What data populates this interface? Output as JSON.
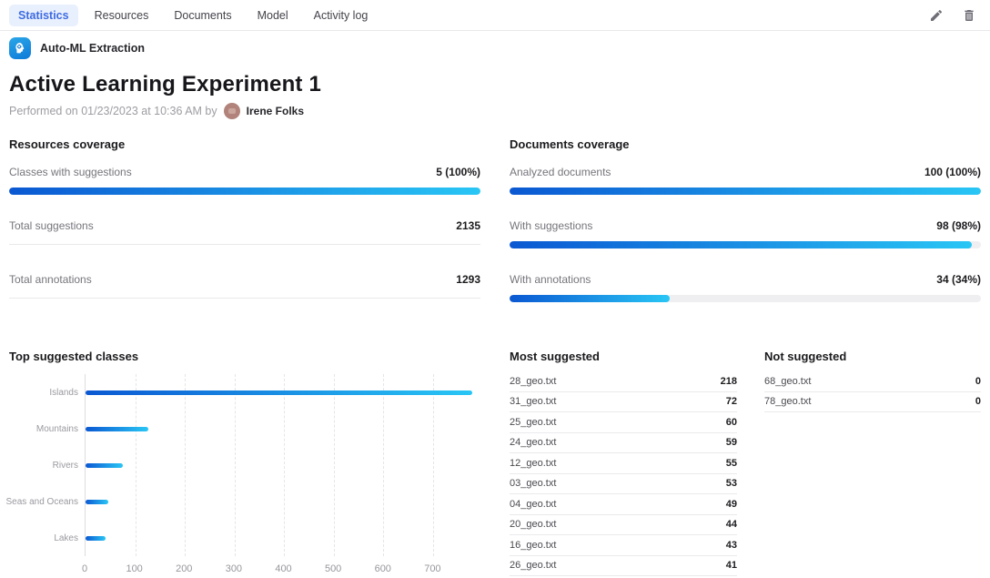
{
  "tabs": [
    {
      "label": "Statistics",
      "active": true
    },
    {
      "label": "Resources",
      "active": false
    },
    {
      "label": "Documents",
      "active": false
    },
    {
      "label": "Model",
      "active": false
    },
    {
      "label": "Activity log",
      "active": false
    }
  ],
  "header_actions": [
    {
      "name": "edit",
      "icon": "pencil-icon"
    },
    {
      "name": "delete",
      "icon": "trash-icon"
    }
  ],
  "breadcrumb": {
    "app_icon": "auto-ml-head-gear-icon",
    "label": "Auto-ML Extraction"
  },
  "page": {
    "title": "Active Learning Experiment 1",
    "performed_text": "Performed on 01/23/2023 at 10:36 AM by",
    "author": "Irene Folks"
  },
  "resources_coverage": {
    "title": "Resources coverage",
    "rows": [
      {
        "label": "Classes with suggestions",
        "value": "5 (100%)",
        "progress": 100
      },
      {
        "label": "Total suggestions",
        "value": "2135",
        "progress": null
      },
      {
        "label": "Total annotations",
        "value": "1293",
        "progress": null
      }
    ]
  },
  "documents_coverage": {
    "title": "Documents coverage",
    "rows": [
      {
        "label": "Analyzed documents",
        "value": "100 (100%)",
        "progress": 100
      },
      {
        "label": "With suggestions",
        "value": "98 (98%)",
        "progress": 98
      },
      {
        "label": "With annotations",
        "value": "34 (34%)",
        "progress": 34
      }
    ]
  },
  "chart_data": {
    "type": "bar",
    "orientation": "horizontal",
    "title": "Top suggested classes",
    "categories": [
      "Islands",
      "Mountains",
      "Rivers",
      "Seas and Oceans",
      "Lakes"
    ],
    "values": [
      780,
      127,
      75,
      45,
      41
    ],
    "xlabel": "",
    "ylabel": "",
    "xlim": [
      0,
      800
    ],
    "xticks": [
      0,
      100,
      200,
      300,
      400,
      500,
      600,
      700
    ],
    "grid": "dashed-vertical",
    "legend": "none",
    "bar_gradient": [
      "#0b58d2",
      "#29c6f5"
    ]
  },
  "most_suggested": {
    "title": "Most suggested",
    "rows": [
      {
        "file": "28_geo.txt",
        "count": 218
      },
      {
        "file": "31_geo.txt",
        "count": 72
      },
      {
        "file": "25_geo.txt",
        "count": 60
      },
      {
        "file": "24_geo.txt",
        "count": 59
      },
      {
        "file": "12_geo.txt",
        "count": 55
      },
      {
        "file": "03_geo.txt",
        "count": 53
      },
      {
        "file": "04_geo.txt",
        "count": 49
      },
      {
        "file": "20_geo.txt",
        "count": 44
      },
      {
        "file": "16_geo.txt",
        "count": 43
      },
      {
        "file": "26_geo.txt",
        "count": 41
      }
    ]
  },
  "not_suggested": {
    "title": "Not suggested",
    "rows": [
      {
        "file": "68_geo.txt",
        "count": 0
      },
      {
        "file": "78_geo.txt",
        "count": 0
      }
    ]
  },
  "colors": {
    "accent": "#3e6be2",
    "active_tab_bg": "#e9f0fd",
    "bar_gradient_start": "#0b58d2",
    "bar_gradient_end": "#29c6f5",
    "bar_track": "#efeff2",
    "app_icon_bg": "#1593dc",
    "avatar_bg": "#b1837a"
  }
}
